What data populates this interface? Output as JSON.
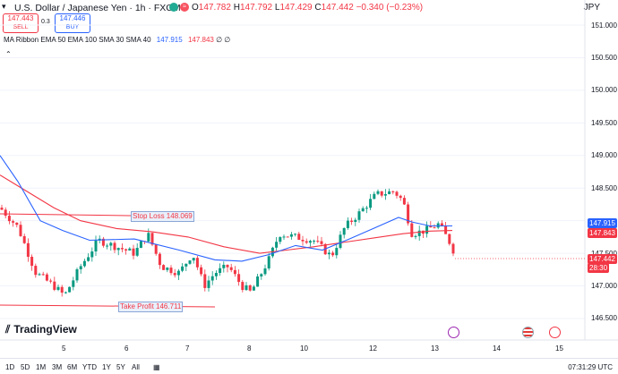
{
  "header": {
    "collapse_icon": "chevron-down-icon",
    "symbol_title": "U.S. Dollar / Japanese Yen · 1h · FXCM",
    "ohlc": [
      {
        "k": "O",
        "v": "147.782"
      },
      {
        "k": "H",
        "v": "147.792"
      },
      {
        "k": "L",
        "v": "147.429"
      },
      {
        "k": "C",
        "v": "147.442"
      }
    ],
    "change": "−0.340 (−0.23%)",
    "currency": "JPY",
    "status_dot_color": "#22ab94",
    "alert_dot_color": "#f7525f"
  },
  "trade": {
    "sell_price": "147.443",
    "sell_label": "SELL",
    "spread": "0.3",
    "buy_price": "147.446",
    "buy_label": "BUY"
  },
  "indicator": {
    "name": "MA Ribbon EMA 50 EMA 100 SMA 30 SMA 40",
    "value_blue": "147.915",
    "value_red": "147.843",
    "value_3": "∅",
    "value_4": "∅"
  },
  "price_axis": {
    "ticks": [
      "151.000",
      "150.500",
      "150.000",
      "149.500",
      "149.000",
      "148.500",
      "148.000",
      "147.500",
      "147.000",
      "146.500"
    ],
    "tag_blue": "147.915",
    "tag_red": "147.843",
    "tag_last": "147.442",
    "tag_countdown": "28:30",
    "blue_color": "#2962ff",
    "red_color": "#f23645"
  },
  "time_axis": {
    "ticks": [
      "5",
      "6",
      "7",
      "8",
      "10",
      "12",
      "13",
      "14",
      "15"
    ]
  },
  "drawings": {
    "stop_loss": "Stop Loss 148.069",
    "take_profit": "Take Profit 146.711"
  },
  "branding": {
    "logo_text": "TradingView"
  },
  "bottom_bar": {
    "ranges": [
      "1D",
      "5D",
      "1M",
      "3M",
      "6M",
      "YTD",
      "1Y",
      "5Y",
      "All"
    ],
    "calendar_icon": "calendar-range-icon",
    "clock": "07:31:29 UTC"
  },
  "chart_data": {
    "type": "candlestick",
    "interval": "1h",
    "x_ticks": [
      "5",
      "6",
      "7",
      "8",
      "10",
      "12",
      "13",
      "14",
      "15"
    ],
    "y_range": [
      146.3,
      151.2
    ],
    "last_price": 147.442,
    "stop_loss": 148.069,
    "take_profit": 146.711,
    "series_names": [
      "EMA 50",
      "EMA 100"
    ],
    "up_color": "#089981",
    "down_color": "#f23645"
  }
}
